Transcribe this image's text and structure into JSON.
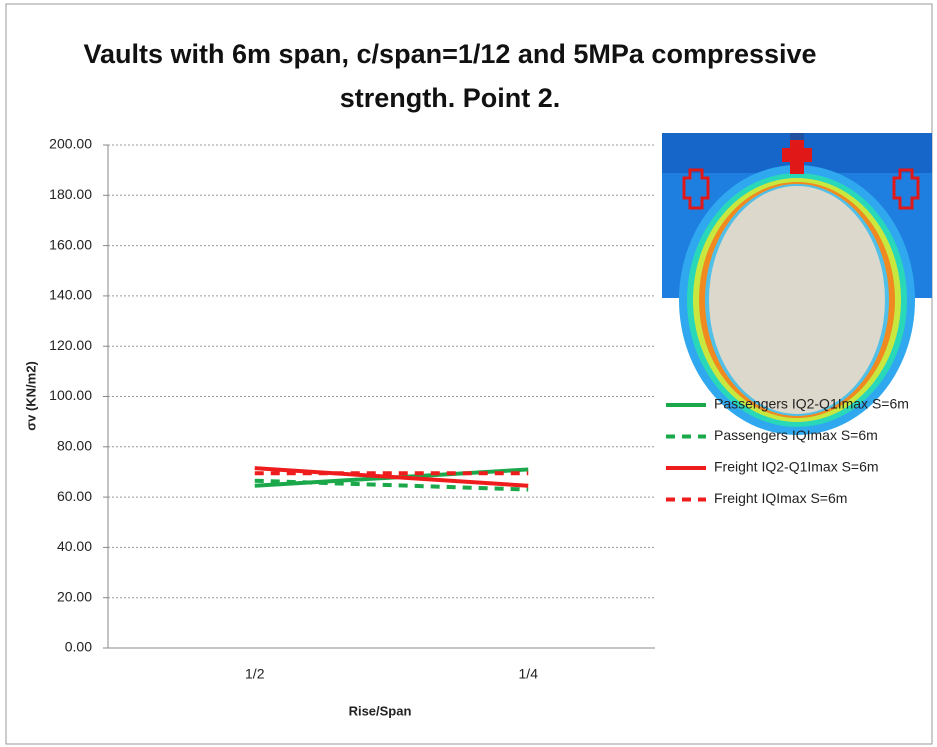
{
  "chart_data": {
    "type": "line",
    "title": "Vaults with 6m span,  c/span=1/12 and 5MPa compressive strength. Point 2.",
    "x_label": "Rise/Span",
    "y_label": "σv (KN/m2)",
    "categories": [
      "1/2",
      "1/4"
    ],
    "series": [
      {
        "name": "Passengers IQ2-Q1Imax S=6m",
        "color": "#1aa84a",
        "dash": false,
        "values": [
          64.5,
          71
        ]
      },
      {
        "name": "Passengers IQImax S=6m",
        "color": "#1aa84a",
        "dash": true,
        "values": [
          66.5,
          63
        ]
      },
      {
        "name": "Freight IQ2-Q1Imax S=6m",
        "color": "#ee1c1c",
        "dash": false,
        "values": [
          71.5,
          64.5
        ]
      },
      {
        "name": "Freight IQImax S=6m",
        "color": "#ee1c1c",
        "dash": true,
        "values": [
          69.5,
          69.5
        ]
      }
    ],
    "ylim": [
      0,
      200
    ],
    "yticks": [
      {
        "value": 0,
        "label": "0.00"
      },
      {
        "value": 20,
        "label": "20.00"
      },
      {
        "value": 40,
        "label": "40.00"
      },
      {
        "value": 60,
        "label": "60.00"
      },
      {
        "value": 80,
        "label": "80.00"
      },
      {
        "value": 100,
        "label": "100.00"
      },
      {
        "value": 120,
        "label": "120.00"
      },
      {
        "value": 140,
        "label": "140.00"
      },
      {
        "value": 160,
        "label": "160.00"
      },
      {
        "value": 180,
        "label": "180.00"
      },
      {
        "value": 200,
        "label": "200.00"
      }
    ],
    "grid": true
  }
}
